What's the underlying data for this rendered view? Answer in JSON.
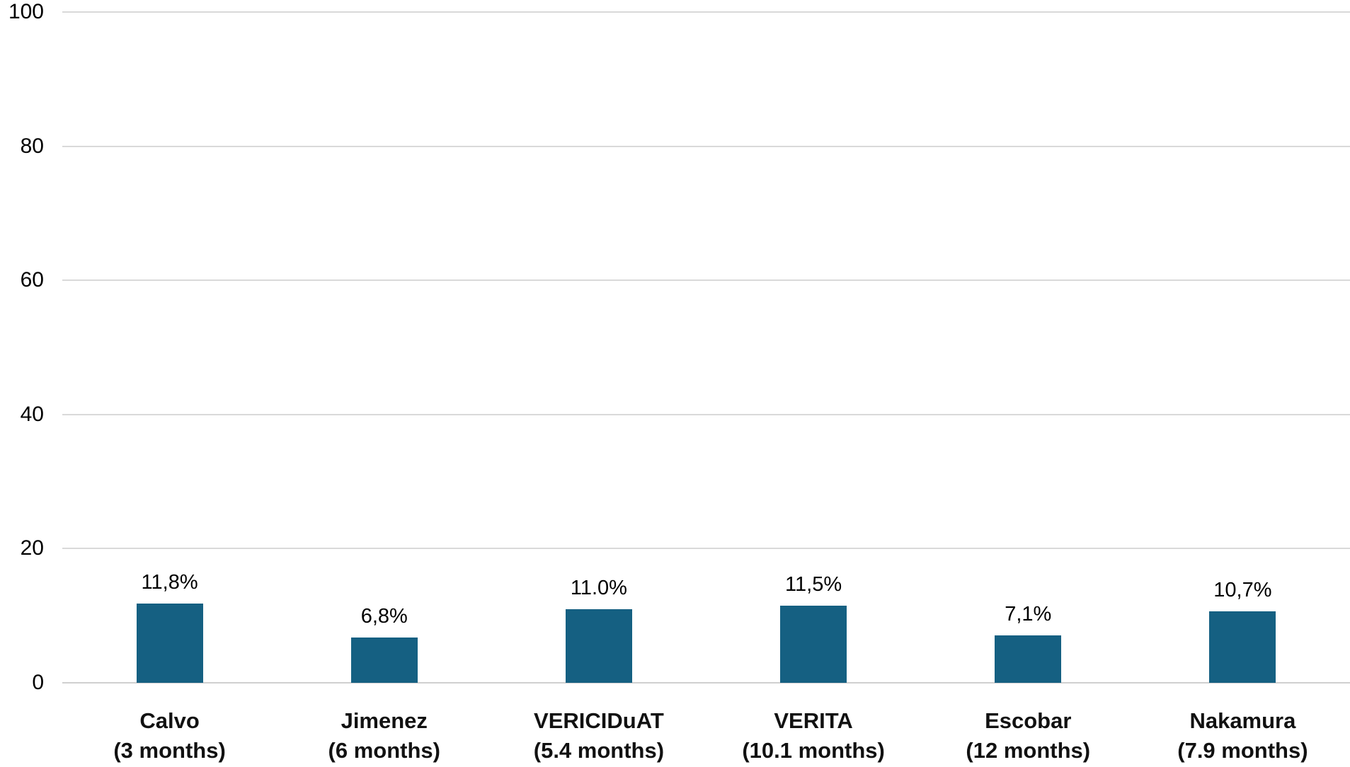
{
  "chart_data": {
    "type": "bar",
    "title": "",
    "xlabel": "",
    "ylabel": "",
    "ylim": [
      0,
      100
    ],
    "grid": "horizontal",
    "legend": "none",
    "y_axis": {
      "min": 0,
      "max": 100,
      "ticks": [
        0,
        20,
        40,
        60,
        80,
        100
      ],
      "tick_labels": [
        "0",
        "20",
        "40",
        "60",
        "80",
        "100"
      ]
    },
    "categories": [
      "Calvo (3 months)",
      "Jimenez (6 months)",
      "VERICIDuAT (5.4 months)",
      "VERITA (10.1 months)",
      "Escobar (12 months)",
      "Nakamura (7.9 months)"
    ],
    "bars": [
      {
        "category": "Calvo",
        "duration": "(3 months)",
        "value": 11.8,
        "value_label": "11,8%"
      },
      {
        "category": "Jimenez",
        "duration": "(6 months)",
        "value": 6.8,
        "value_label": "6,8%"
      },
      {
        "category": "VERICIDuAT",
        "duration": "(5.4 months)",
        "value": 11.0,
        "value_label": "11.0%"
      },
      {
        "category": "VERITA",
        "duration": "(10.1 months)",
        "value": 11.5,
        "value_label": "11,5%"
      },
      {
        "category": "Escobar",
        "duration": "(12 months)",
        "value": 7.1,
        "value_label": "7,1%"
      },
      {
        "category": "Nakamura",
        "duration": "(7.9 months)",
        "value": 10.7,
        "value_label": "10,7%"
      }
    ],
    "colors": {
      "bar": "#156082",
      "gridline": "#D9D9D9",
      "axis_line": "#D0D0D0",
      "text": "#000000"
    }
  }
}
